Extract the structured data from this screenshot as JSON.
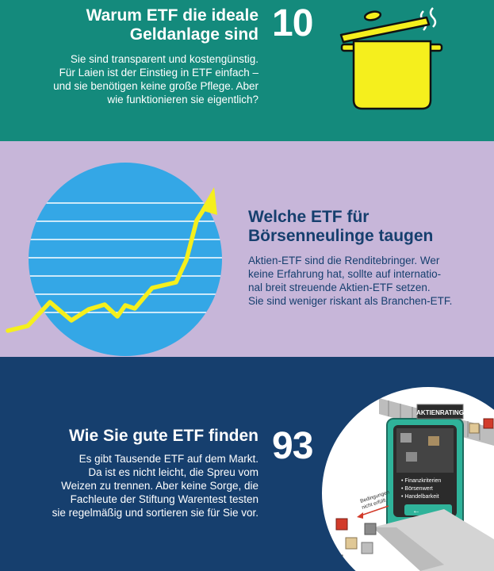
{
  "sections": [
    {
      "title_line1": "Warum ETF die ideale",
      "title_line2": "Geldanlage sind",
      "number": "10",
      "body_lines": [
        "Sie sind transparent und kostengünstig.",
        "Für Laien ist der Einstieg in ETF einfach –",
        "und sie benötigen keine große Pflege. Aber",
        "wie funktionieren sie eigentlich?"
      ],
      "icon": "cooking-pot-icon"
    },
    {
      "title_line1": "Welche ETF für",
      "title_line2": "Börsenneulinge taugen",
      "body_lines": [
        "Aktien-ETF sind die Renditebringer. Wer",
        "keine Erfahrung hat, sollte auf internatio-",
        "nal breit streuende Aktien-ETF setzen.",
        "Sie sind weniger riskant als Branchen-ETF."
      ],
      "icon": "rising-chart-icon"
    },
    {
      "title_line1": "Wie Sie gute ETF finden",
      "number": "93",
      "body_lines": [
        "Es gibt Tausende ETF auf dem Markt.",
        "Da ist es nicht leicht, die Spreu vom",
        "Weizen zu trennen. Aber keine Sorge, die",
        "Fachleute der Stiftung Warentest testen",
        "sie regelmäßig und sortieren sie für Sie vor."
      ],
      "illustration": {
        "sign": "AKTIENRATING",
        "screen_items": [
          "• Finanzkriterien",
          "• Börsenwert",
          "• Handelbarkeit"
        ],
        "note_line1": "Bedingungen",
        "note_line2": "nicht erfüllt"
      }
    }
  ],
  "colors": {
    "teal": "#148a7c",
    "lavender": "#c7b6d9",
    "navy": "#163f6e",
    "yellow": "#f5ef1d",
    "sky": "#34a7e6"
  }
}
